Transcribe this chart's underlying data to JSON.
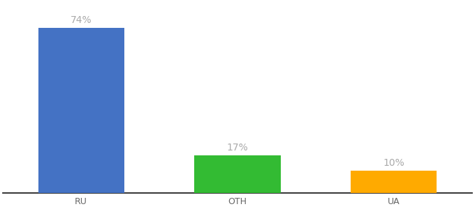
{
  "categories": [
    "RU",
    "OTH",
    "UA"
  ],
  "values": [
    74,
    17,
    10
  ],
  "bar_colors": [
    "#4472c4",
    "#33bb33",
    "#ffaa00"
  ],
  "ylim": [
    0,
    85
  ],
  "background_color": "#ffffff",
  "label_color": "#aaaaaa",
  "label_fontsize": 10,
  "tick_fontsize": 9,
  "bar_width": 0.55,
  "x_positions": [
    1,
    2,
    3
  ]
}
